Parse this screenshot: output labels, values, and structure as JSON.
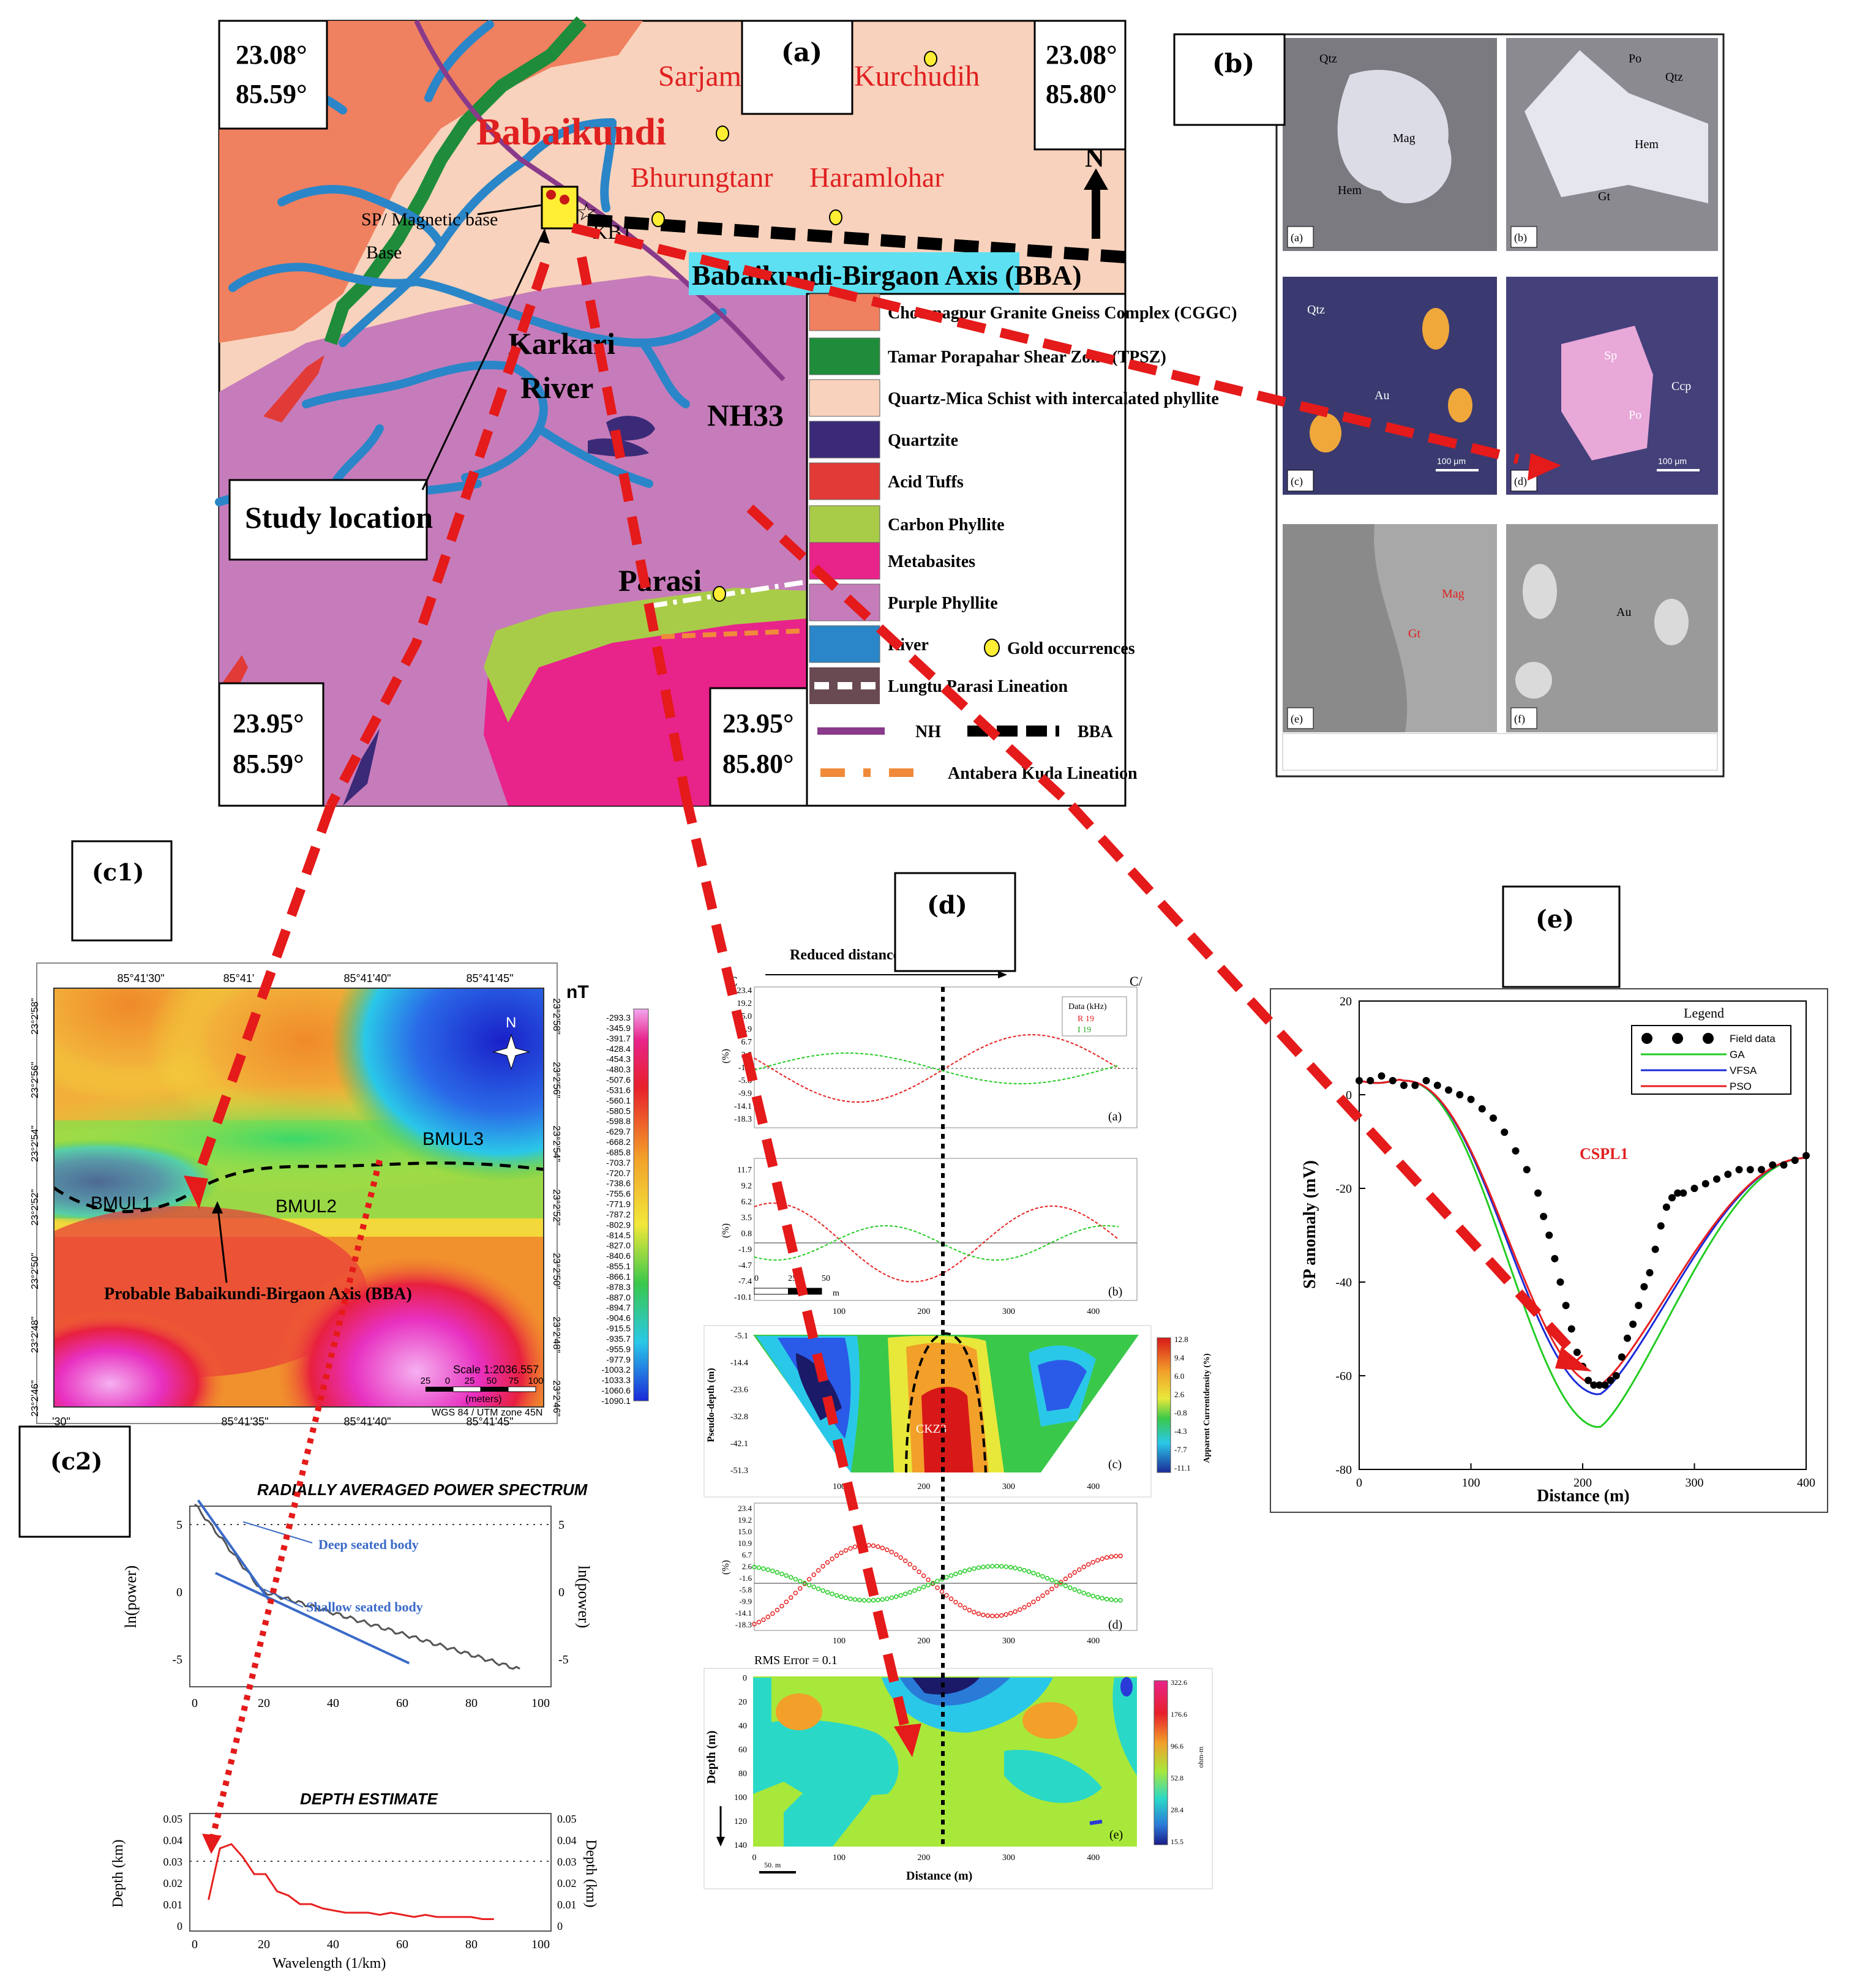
{
  "panel_labels": [
    "(a)",
    "(b)",
    "(c1)",
    "(c2)",
    "(d)",
    "(e)"
  ],
  "map_a": {
    "corners": {
      "top_left": [
        "23.08°",
        "85.59°"
      ],
      "top_right": [
        "23.08°",
        "85.80°"
      ],
      "bottom_left": [
        "23.95°",
        "85.59°"
      ],
      "bottom_right": [
        "23.95°",
        "85.80°"
      ]
    },
    "places": [
      "Sarjamdi",
      "Kurchudih",
      "Babaikundi",
      "Bhurungtanr",
      "Haramlohar",
      "Karkari",
      "River",
      "NH33",
      "Parasi"
    ],
    "axis_banner": "Babaikundi-Birgaon Axis (BBA)",
    "base_label": "SP/ Magnetic base",
    "base_label_2": "Base",
    "kb_label": "KB1",
    "north": "N",
    "study_location": "Study location",
    "legend": [
      {
        "label": "Chotanagpur Granite Gneiss Complex (CGGC)",
        "color": "#ef8060"
      },
      {
        "label": "Tamar Porapahar Shear Zone (TPSZ)",
        "color": "#1e8c3a"
      },
      {
        "label": "Quartz-Mica Schist with intercalated phyllite",
        "color": "#f8d2bc"
      },
      {
        "label": "Quartzite",
        "color": "#3a2a78"
      },
      {
        "label": "Acid Tuffs",
        "color": "#e23a36"
      },
      {
        "label": "Carbon Phyllite",
        "color": "#a8cc48"
      },
      {
        "label": "Metabasites",
        "color": "#e8238a"
      },
      {
        "label": "Purple Phyllite",
        "color": "#c67cba"
      },
      {
        "label": "River",
        "color": "#2a86c8"
      },
      {
        "label": "Gold occurrences",
        "color": "#ffee33"
      },
      {
        "label": "Lungtu Parasi Lineation",
        "color": "#6a4a52"
      },
      {
        "label": "NH",
        "color": "#8a3a8a"
      },
      {
        "label": "BBA",
        "color": "#000000"
      },
      {
        "label": "Antabera Kuda Lineation",
        "color": "#f08a3a"
      }
    ]
  },
  "micro_b": {
    "tiles": [
      {
        "letter": "(a)",
        "labels": [
          "Qtz",
          "Mag",
          "Hem"
        ]
      },
      {
        "letter": "(b)",
        "labels": [
          "Po",
          "Qtz",
          "Hem",
          "Gt"
        ]
      },
      {
        "letter": "(c)",
        "labels": [
          "Qtz",
          "Au"
        ],
        "scale": "100 μm"
      },
      {
        "letter": "(d)",
        "labels": [
          "Sp",
          "Ccp",
          "Po"
        ],
        "scale": "100 μm"
      },
      {
        "letter": "(e)",
        "labels": [
          "Mag",
          "Gt"
        ]
      },
      {
        "letter": "(f)",
        "labels": [
          "Au"
        ]
      }
    ]
  },
  "c1": {
    "unit": "nT",
    "top_ticks": [
      "85°41'30\"",
      "85°41'",
      "85°41'40\"",
      "85°41'45\""
    ],
    "bottom_ticks": [
      "'30\"",
      "85°41'35\"",
      "85°41'40\"",
      "85°41'45\""
    ],
    "lat_ticks": [
      "23°2'58\"",
      "23°2'56\"",
      "23°2'54\"",
      "23°2'52\"",
      "23°2'50\"",
      "23°2'48\"",
      "23°2'46\""
    ],
    "labels": [
      "BMUL1",
      "BMUL2",
      "BMUL3"
    ],
    "axis_label": "Probable Babaikundi-Birgaon Axis (BBA)",
    "north": "N",
    "scale_text": "Scale 1:2036.557",
    "scale_ticks": [
      "25",
      "0",
      "25",
      "50",
      "75",
      "100"
    ],
    "scale_unit": "(meters)",
    "projection": "WGS 84 / UTM zone 45N",
    "colorbar": [
      "-293.3",
      "-345.9",
      "-391.7",
      "-428.4",
      "-454.3",
      "-480.3",
      "-507.6",
      "-531.6",
      "-560.1",
      "-580.5",
      "-598.8",
      "-629.7",
      "-668.2",
      "-685.8",
      "-703.7",
      "-720.7",
      "-738.6",
      "-755.6",
      "-771.9",
      "-787.2",
      "-802.9",
      "-814.5",
      "-827.0",
      "-840.6",
      "-855.1",
      "-866.1",
      "-878.3",
      "-887.0",
      "-894.7",
      "-904.6",
      "-915.5",
      "-935.7",
      "-955.9",
      "-977.9",
      "-1003.2",
      "-1033.3",
      "-1060.6",
      "-1090.1"
    ]
  },
  "c2": {
    "title1": "RADIALLY AVERAGED POWER SPECTRUM",
    "ylabel1": "ln(power)",
    "deep": "Deep seated body",
    "shallow": "Shallow seated body",
    "y1_ticks": [
      "5",
      "0",
      "-5"
    ],
    "x_ticks": [
      "0",
      "20",
      "40",
      "60",
      "80",
      "100"
    ],
    "title2": "DEPTH ESTIMATE",
    "ylabel2": "Depth (km)",
    "y2_ticks": [
      "0.05",
      "0.04",
      "0.03",
      "0.02",
      "0.01",
      "0"
    ],
    "xlabel": "Wavelength (1/km)"
  },
  "d": {
    "reduced_distance": "Reduced distance",
    "c": "C",
    "c_prime": "C/",
    "legend_title": "Data (kHz)",
    "legend_r": "R 19",
    "legend_i": "I 19",
    "a_ticks": [
      "23.4",
      "19.2",
      "15.0",
      "10.9",
      "6.7",
      "2.6",
      "-1.6",
      "-5.8",
      "-9.9",
      "-14.1",
      "-18.3"
    ],
    "b_ticks": [
      "11.7",
      "9.2",
      "6.2",
      "3.5",
      "0.8",
      "-1.9",
      "-4.7",
      "-7.4",
      "-10.1"
    ],
    "x_ticks": [
      "100",
      "200",
      "300",
      "400"
    ],
    "ylabel": "(%)",
    "scale_small": [
      "0",
      "25",
      "50"
    ],
    "scale_unit": "m",
    "pseudo_label": "Pseudo-depth (m)",
    "pseudo_ticks": [
      "-5.1",
      "-14.4",
      "-23.6",
      "-32.8",
      "-42.1",
      "-51.3"
    ],
    "ckz": "CKZ3",
    "current_label": "Apparent Currentdensity (%)",
    "current_ticks": [
      "12.8",
      "9.4",
      "6.0",
      "2.6",
      "-0.8",
      "-4.3",
      "-7.7",
      "-11.1"
    ],
    "rms": "RMS Error = 0.1",
    "depth_label": "Depth (m)",
    "depth_ticks": [
      "0",
      "20",
      "40",
      "60",
      "80",
      "100",
      "120",
      "140"
    ],
    "xlabel": "Distance (m)",
    "e_x_ticks": [
      "0",
      "100",
      "200",
      "300",
      "400"
    ],
    "e_scale": "50. m",
    "res_ticks": [
      "322.6",
      "176.6",
      "96.6",
      "52.8",
      "28.4",
      "15.5"
    ],
    "res_label": "ohm-m",
    "sub": [
      "(a)",
      "(b)",
      "(c)",
      "(d)",
      "(e)"
    ]
  },
  "e": {
    "ylabel": "SP anomaly (mV)",
    "xlabel": "Distance (m)",
    "legend_title": "Legend",
    "legend": [
      {
        "name": "Field data",
        "color": "#000000"
      },
      {
        "name": "GA",
        "color": "#22cc22"
      },
      {
        "name": "VFSA",
        "color": "#1a2ad8"
      },
      {
        "name": "PSO",
        "color": "#e82020"
      }
    ],
    "profile": "CSPL1",
    "y_ticks": [
      "20",
      "0",
      "-20",
      "-40",
      "-60",
      "-80"
    ],
    "x_ticks": [
      "0",
      "100",
      "200",
      "300",
      "400"
    ]
  }
}
